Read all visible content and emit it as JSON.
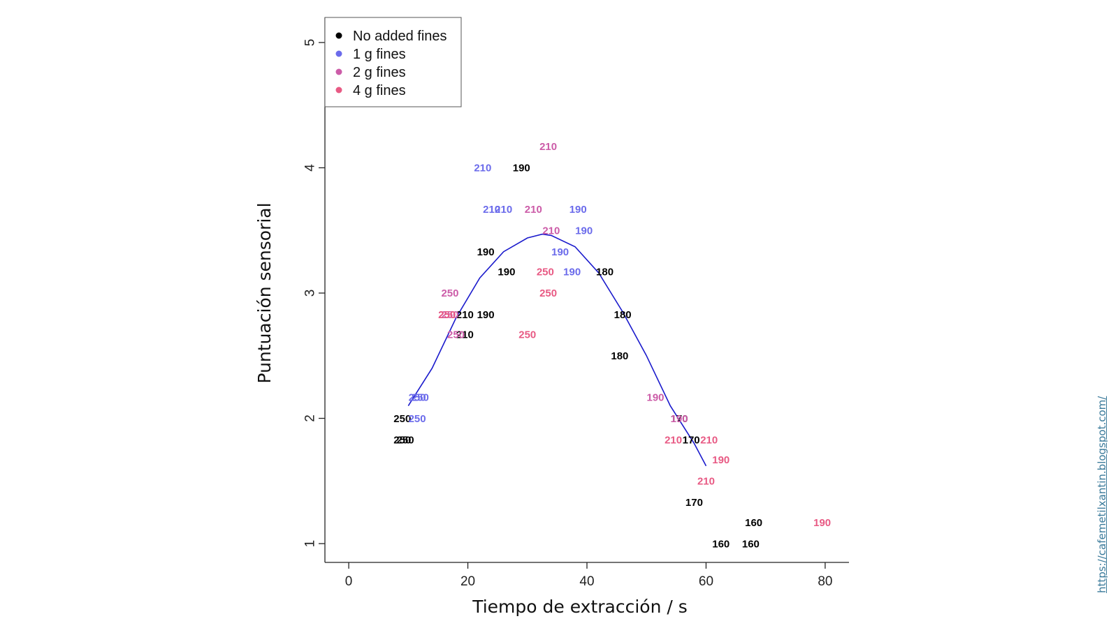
{
  "chart_data": {
    "type": "scatter",
    "xlabel": "Tiempo de extracción / s",
    "ylabel": "Puntuación sensorial",
    "xlim": [
      -4,
      84
    ],
    "ylim": [
      0.85,
      5.2
    ],
    "xticks": [
      0,
      20,
      40,
      60,
      80
    ],
    "yticks": [
      1,
      2,
      3,
      4,
      5
    ],
    "legend_position": "top-left",
    "series": [
      {
        "name": "No added fines",
        "color": "#000000",
        "points": [
          {
            "x": 9,
            "y": 2.0,
            "label": "250"
          },
          {
            "x": 9,
            "y": 1.83,
            "label": "250"
          },
          {
            "x": 9.5,
            "y": 1.83,
            "label": "250"
          },
          {
            "x": 29,
            "y": 4.0,
            "label": "190"
          },
          {
            "x": 23,
            "y": 3.33,
            "label": "190"
          },
          {
            "x": 26.5,
            "y": 3.17,
            "label": "190"
          },
          {
            "x": 19.5,
            "y": 2.83,
            "label": "210"
          },
          {
            "x": 23,
            "y": 2.83,
            "label": "190"
          },
          {
            "x": 19.5,
            "y": 2.67,
            "label": "210"
          },
          {
            "x": 43,
            "y": 3.17,
            "label": "180"
          },
          {
            "x": 46,
            "y": 2.83,
            "label": "180"
          },
          {
            "x": 45.5,
            "y": 2.5,
            "label": "180"
          },
          {
            "x": 55.5,
            "y": 2.0,
            "label": "170"
          },
          {
            "x": 57.5,
            "y": 1.83,
            "label": "170"
          },
          {
            "x": 58,
            "y": 1.33,
            "label": "170"
          },
          {
            "x": 68,
            "y": 1.17,
            "label": "160"
          },
          {
            "x": 62.5,
            "y": 1.0,
            "label": "160"
          },
          {
            "x": 67.5,
            "y": 1.0,
            "label": "160"
          }
        ]
      },
      {
        "name": "1 g fines",
        "color": "#6b6beb",
        "points": [
          {
            "x": 11.5,
            "y": 2.17,
            "label": "250"
          },
          {
            "x": 12,
            "y": 2.17,
            "label": "250"
          },
          {
            "x": 11.5,
            "y": 2.0,
            "label": "250"
          },
          {
            "x": 22.5,
            "y": 4.0,
            "label": "210"
          },
          {
            "x": 24,
            "y": 3.67,
            "label": "210"
          },
          {
            "x": 26,
            "y": 3.67,
            "label": "210"
          },
          {
            "x": 38.5,
            "y": 3.67,
            "label": "190"
          },
          {
            "x": 39.5,
            "y": 3.5,
            "label": "190"
          },
          {
            "x": 35.5,
            "y": 3.33,
            "label": "190"
          },
          {
            "x": 37.5,
            "y": 3.17,
            "label": "190"
          }
        ]
      },
      {
        "name": "2 g fines",
        "color": "#cc5ca8",
        "points": [
          {
            "x": 33.5,
            "y": 4.17,
            "label": "210"
          },
          {
            "x": 31,
            "y": 3.67,
            "label": "210"
          },
          {
            "x": 34,
            "y": 3.5,
            "label": "210"
          },
          {
            "x": 17,
            "y": 3.0,
            "label": "250"
          },
          {
            "x": 16.5,
            "y": 2.83,
            "label": "250"
          },
          {
            "x": 17,
            "y": 2.83,
            "label": "250"
          },
          {
            "x": 18,
            "y": 2.67,
            "label": "250"
          },
          {
            "x": 51.5,
            "y": 2.17,
            "label": "190"
          },
          {
            "x": 55.5,
            "y": 2.0,
            "label": "190"
          }
        ]
      },
      {
        "name": "4 g fines",
        "color": "#e85a84",
        "points": [
          {
            "x": 33,
            "y": 3.17,
            "label": "250"
          },
          {
            "x": 33.5,
            "y": 3.0,
            "label": "250"
          },
          {
            "x": 30,
            "y": 2.67,
            "label": "250"
          },
          {
            "x": 16.5,
            "y": 2.83,
            "label": "250"
          },
          {
            "x": 54.5,
            "y": 1.83,
            "label": "210"
          },
          {
            "x": 60.5,
            "y": 1.83,
            "label": "210"
          },
          {
            "x": 60,
            "y": 1.5,
            "label": "210"
          },
          {
            "x": 62.5,
            "y": 1.67,
            "label": "190"
          },
          {
            "x": 79.5,
            "y": 1.17,
            "label": "190"
          }
        ]
      }
    ],
    "fit_curve": {
      "type": "line",
      "color": "#1a1acc",
      "x": [
        10,
        14,
        18,
        22,
        26,
        30,
        32.5,
        34,
        38,
        42,
        46,
        50,
        54,
        58,
        60
      ],
      "y": [
        2.1,
        2.4,
        2.8,
        3.12,
        3.33,
        3.44,
        3.47,
        3.46,
        3.37,
        3.16,
        2.85,
        2.5,
        2.1,
        1.8,
        1.62
      ]
    }
  },
  "watermark": "https://cafemetilxantin.blogspot.com/"
}
